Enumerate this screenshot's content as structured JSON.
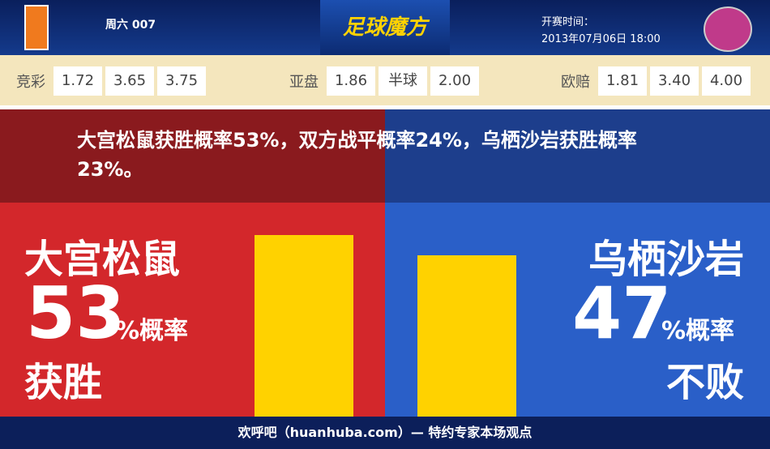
{
  "header": {
    "match_info": "周六 007",
    "brand": "足球魔方",
    "time_label": "开赛时间：",
    "time": "2013年07月06日 18:00"
  },
  "odds": [
    {
      "label": "竞彩",
      "values": [
        "1.72",
        "3.65",
        "3.75"
      ]
    },
    {
      "label": "亚盘",
      "values": [
        "1.86",
        "半球",
        "2.00"
      ]
    },
    {
      "label": "欧赔",
      "values": [
        "1.81",
        "3.40",
        "4.00"
      ]
    }
  ],
  "summary": "大宫松鼠获胜概率53%，双方战平概率24%，乌栖沙岩获胜概率23%。",
  "home": {
    "team": "大宫松鼠",
    "percent": 53,
    "unit": "%概率",
    "outcome": "获胜"
  },
  "away": {
    "team": "乌栖沙岩",
    "percent": 47,
    "unit": "%概率",
    "outcome": "不败"
  },
  "footer": "欢呼吧（huanhuba.com）— 特约专家本场观点"
}
